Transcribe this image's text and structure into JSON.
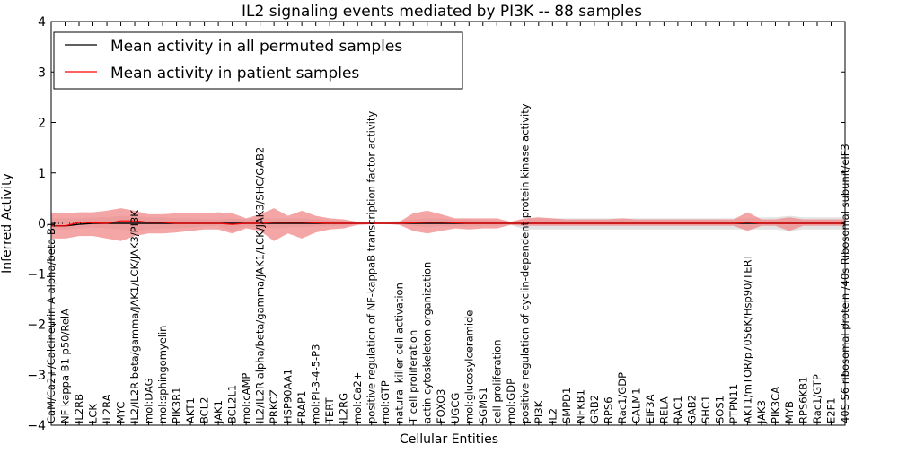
{
  "chart_data": {
    "type": "line",
    "title": "IL2 signaling events mediated by PI3K -- 88 samples",
    "xlabel": "Cellular Entities",
    "ylabel": "Inferred Activity",
    "ylim": [
      -4,
      4
    ],
    "yticks": [
      -4,
      -3,
      -2,
      -1,
      0,
      1,
      2,
      3,
      4
    ],
    "ytick_labels": [
      "−4",
      "−3",
      "−2",
      "−1",
      "0",
      "1",
      "2",
      "3",
      "4"
    ],
    "legend_position": "top-left",
    "categories": [
      "CaM/Ca2+/Calcineurin A alpha/beta B1",
      "NF kappa B1 p50/RelA",
      "IL2RB",
      "LCK",
      "IL2RA",
      "MYC",
      "IL2/IL2R beta/gamma/JAK1/LCK/JAK3/PI3K",
      "mol:DAG",
      "mol:sphingomyelin",
      "PIK3R1",
      "AKT1",
      "BCL2",
      "JAK1",
      "BCL2L1",
      "mol:cAMP",
      "IL2/IL2R alpha/beta/gamma/JAK1/LCK/JAK3/SHC/GAB2",
      "PRKCZ",
      "HSP90AA1",
      "FRAP1",
      "mol:PI-3-4-5-P3",
      "TERT",
      "IL2RG",
      "mol:Ca2+",
      "positive regulation of NF-kappaB transcription factor activity",
      "mol:GTP",
      "natural killer cell activation",
      "T cell proliferation",
      "actin cytoskeleton organization",
      "FOXO3",
      "UGCG",
      "mol:glucosylceramide",
      "SGMS1",
      "cell proliferation",
      "mol:GDP",
      "positive regulation of cyclin-dependent protein kinase activity",
      "PI3K",
      "IL2",
      "SMPD1",
      "NFKB1",
      "GRB2",
      "RPS6",
      "Rac1/GDP",
      "CALM1",
      "EIF3A",
      "RELA",
      "RAC1",
      "GAB2",
      "SHC1",
      "SOS1",
      "PTPN11",
      "AKT1/mTOR/p70S6K/Hsp90/TERT",
      "JAK3",
      "PIK3CA",
      "MYB",
      "RPS6KB1",
      "Rac1/GTP",
      "E2F1",
      "40S S6 ribosomal protein /40s Ribosomal subunit/eIF3"
    ],
    "series": [
      {
        "name": "Mean activity in all permuted samples",
        "color": "#000000",
        "band_color": "#cccccc",
        "values": [
          -0.05,
          -0.05,
          -0.02,
          0,
          0,
          0,
          0,
          0,
          0,
          0,
          0,
          0,
          0,
          0,
          0,
          0,
          0,
          0,
          0,
          0,
          0,
          0,
          0,
          0,
          0,
          0,
          0,
          0,
          0,
          0,
          0,
          0,
          0,
          0,
          0,
          0,
          0,
          0,
          0,
          0,
          0,
          0,
          0,
          0,
          0,
          0,
          0,
          0,
          0,
          0,
          0,
          0,
          0,
          0,
          0,
          0,
          0,
          0
        ],
        "lower": [
          -0.12,
          -0.12,
          -0.1,
          -0.08,
          -0.1,
          -0.12,
          -0.15,
          -0.12,
          -0.1,
          -0.1,
          -0.08,
          -0.06,
          -0.05,
          -0.15,
          -0.06,
          -0.08,
          -0.1,
          -0.08,
          -0.08,
          -0.06,
          -0.05,
          -0.05,
          -0.02,
          -0.01,
          -0.02,
          -0.02,
          -0.05,
          -0.08,
          -0.06,
          -0.06,
          -0.06,
          -0.05,
          -0.05,
          -0.03,
          -0.12,
          -0.12,
          -0.12,
          -0.12,
          -0.12,
          -0.12,
          -0.12,
          -0.12,
          -0.12,
          -0.12,
          -0.12,
          -0.12,
          -0.12,
          -0.12,
          -0.12,
          -0.12,
          -0.12,
          -0.12,
          -0.12,
          -0.15,
          -0.12,
          -0.12,
          -0.12,
          -0.12
        ],
        "upper": [
          0.1,
          0.1,
          0.1,
          0.12,
          0.12,
          0.15,
          0.15,
          0.12,
          0.12,
          0.1,
          0.1,
          0.08,
          0.08,
          0.1,
          0.08,
          0.1,
          0.1,
          0.1,
          0.1,
          0.08,
          0.06,
          0.05,
          0.03,
          0.02,
          0.03,
          0.05,
          0.08,
          0.1,
          0.1,
          0.08,
          0.08,
          0.06,
          0.06,
          0.03,
          0.08,
          0.1,
          0.1,
          0.1,
          0.1,
          0.1,
          0.1,
          0.1,
          0.1,
          0.1,
          0.1,
          0.1,
          0.1,
          0.1,
          0.1,
          0.1,
          0.1,
          0.12,
          0.12,
          0.15,
          0.12,
          0.12,
          0.12,
          0.12
        ]
      },
      {
        "name": "Mean activity in patient samples",
        "color": "#ff0000",
        "band_color": "#f08080",
        "values": [
          -0.05,
          -0.05,
          0.02,
          0.01,
          0,
          0.05,
          0.05,
          0.02,
          0.02,
          0,
          0,
          0,
          0,
          -0.02,
          0,
          0,
          0.02,
          0.02,
          0.02,
          0.01,
          0,
          0,
          0,
          0,
          0,
          0,
          0.01,
          0.02,
          0.02,
          0.01,
          0,
          0,
          0,
          0,
          0,
          0,
          0,
          0,
          0,
          0,
          0,
          0,
          0,
          0,
          0,
          0,
          0,
          0,
          0,
          0,
          0.02,
          0,
          0,
          0,
          0,
          0,
          0,
          0
        ],
        "lower": [
          -0.3,
          -0.3,
          -0.25,
          -0.25,
          -0.3,
          -0.35,
          -0.25,
          -0.2,
          -0.2,
          -0.18,
          -0.15,
          -0.12,
          -0.12,
          -0.2,
          -0.1,
          -0.15,
          -0.35,
          -0.2,
          -0.3,
          -0.18,
          -0.12,
          -0.1,
          -0.03,
          -0.02,
          -0.01,
          -0.03,
          -0.15,
          -0.2,
          -0.15,
          -0.1,
          -0.12,
          -0.1,
          -0.1,
          -0.03,
          -0.05,
          -0.05,
          -0.05,
          -0.05,
          -0.05,
          -0.05,
          -0.05,
          -0.05,
          -0.05,
          -0.05,
          -0.05,
          -0.05,
          -0.05,
          -0.05,
          -0.05,
          -0.05,
          -0.15,
          -0.05,
          -0.05,
          -0.15,
          -0.05,
          -0.05,
          -0.05,
          -0.05
        ],
        "upper": [
          0.2,
          0.2,
          0.22,
          0.22,
          0.25,
          0.3,
          0.25,
          0.18,
          0.18,
          0.2,
          0.2,
          0.2,
          0.22,
          0.2,
          0.1,
          0.18,
          0.3,
          0.15,
          0.25,
          0.15,
          0.1,
          0.08,
          0.03,
          0.02,
          0.01,
          0.03,
          0.2,
          0.25,
          0.18,
          0.1,
          0.1,
          0.1,
          0.1,
          0.03,
          0.1,
          0.12,
          0.1,
          0.08,
          0.08,
          0.08,
          0.08,
          0.1,
          0.08,
          0.08,
          0.08,
          0.08,
          0.08,
          0.08,
          0.08,
          0.08,
          0.22,
          0.08,
          0.08,
          0.12,
          0.08,
          0.08,
          0.08,
          0.08
        ]
      }
    ]
  }
}
